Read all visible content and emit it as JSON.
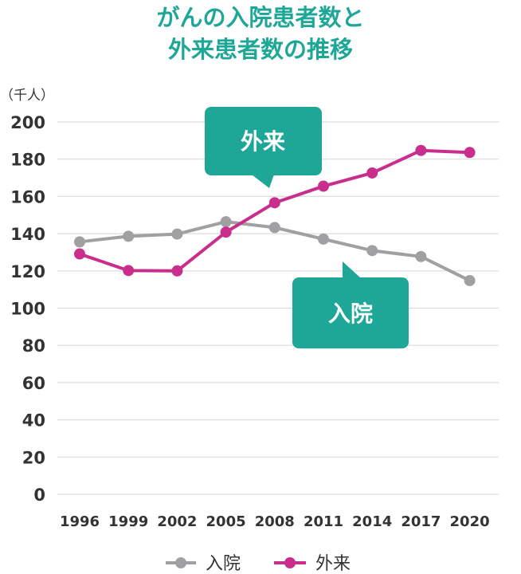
{
  "chart_data": {
    "type": "line",
    "title_lines": [
      "がんの入院患者数と",
      "外来患者数の推移"
    ],
    "unit_label": "（千人）",
    "categories": [
      "1996",
      "1999",
      "2002",
      "2005",
      "2008",
      "2011",
      "2014",
      "2017",
      "2020"
    ],
    "yticks": [
      "200",
      "180",
      "160",
      "140",
      "120",
      "100",
      "80",
      "60",
      "40",
      "20",
      "0"
    ],
    "ylim": [
      0,
      200
    ],
    "grid": true,
    "legend_position": "bottom",
    "series": [
      {
        "name": "入院",
        "color": "#a0a0a2",
        "values": [
          135.6,
          138.6,
          139.8,
          146.4,
          143.3,
          137.1,
          130.9,
          127.7,
          114.8
        ]
      },
      {
        "name": "外来",
        "color": "#c92e8c",
        "values": [
          129.1,
          120.2,
          120.0,
          140.8,
          156.6,
          165.5,
          172.6,
          184.7,
          183.6
        ]
      }
    ],
    "callouts": [
      {
        "label": "外来",
        "color": "#1ea796"
      },
      {
        "label": "入院",
        "color": "#1ea796"
      }
    ]
  }
}
